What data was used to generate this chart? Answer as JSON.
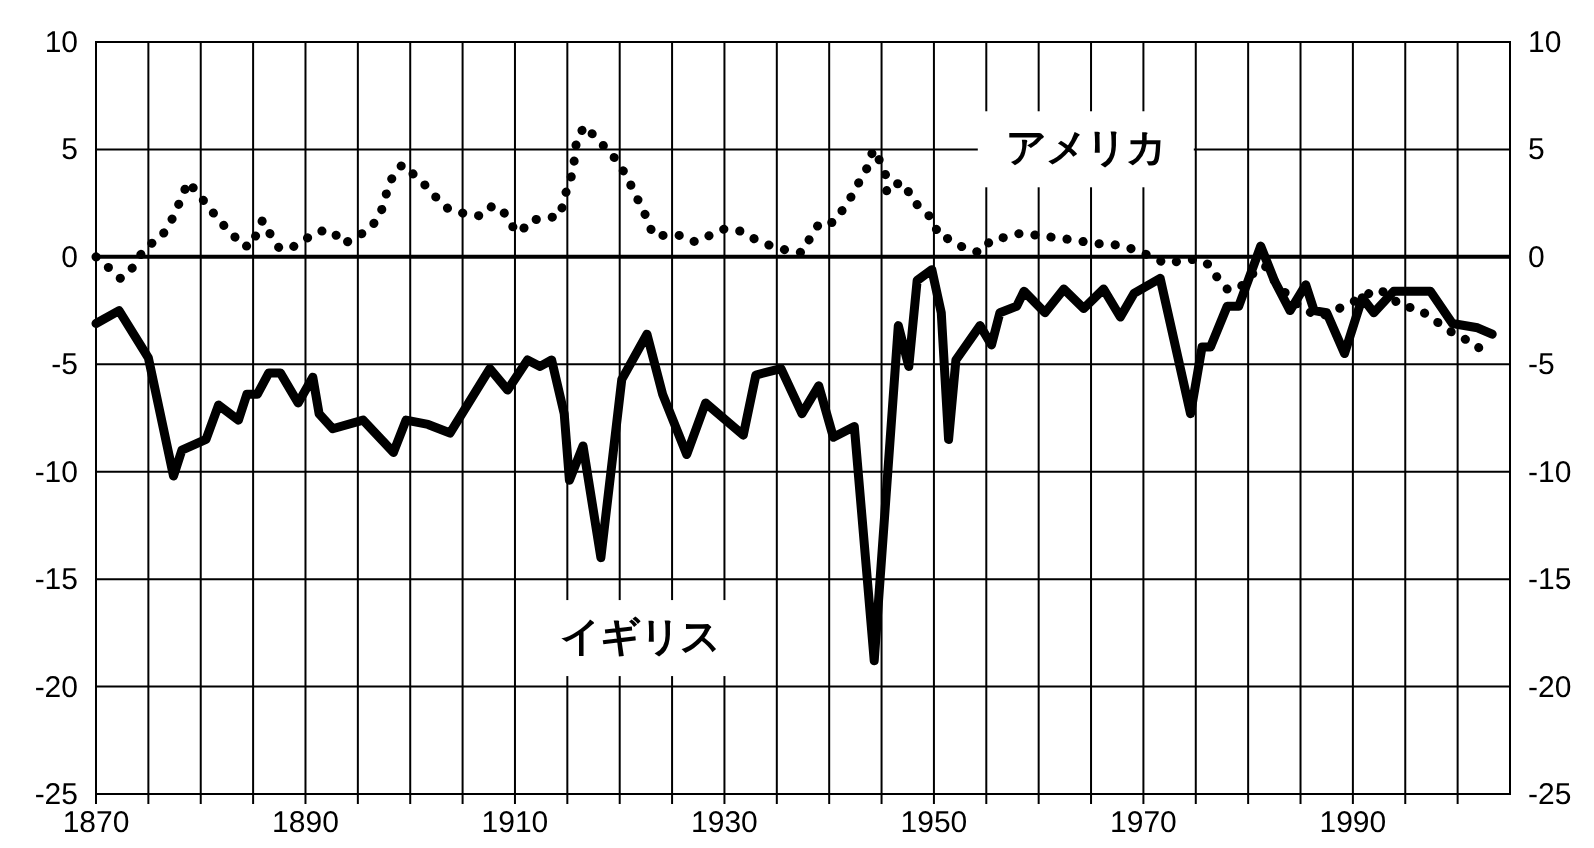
{
  "chart_data": {
    "type": "line",
    "xlim": [
      1870,
      2005
    ],
    "xticks": [
      1870,
      {
        "value": 1875,
        "label": null
      },
      {
        "value": 1880,
        "label": null
      },
      {
        "value": 1885,
        "label": null
      },
      1890,
      {
        "value": 1895,
        "label": null
      },
      {
        "value": 1900,
        "label": null
      },
      {
        "value": 1905,
        "label": null
      },
      1910,
      {
        "value": 1915,
        "label": null
      },
      {
        "value": 1920,
        "label": null
      },
      {
        "value": 1925,
        "label": null
      },
      1930,
      {
        "value": 1935,
        "label": null
      },
      {
        "value": 1940,
        "label": null
      },
      {
        "value": 1945,
        "label": null
      },
      1950,
      {
        "value": 1955,
        "label": null
      },
      {
        "value": 1960,
        "label": null
      },
      {
        "value": 1965,
        "label": null
      },
      1970,
      {
        "value": 1975,
        "label": null
      },
      {
        "value": 1980,
        "label": null
      },
      {
        "value": 1985,
        "label": null
      },
      1990,
      {
        "value": 1995,
        "label": null
      },
      {
        "value": 2000,
        "label": null
      }
    ],
    "ylim": [
      -25,
      10
    ],
    "yticks": [
      -25,
      -20,
      -15,
      -10,
      -5,
      0,
      5,
      10
    ],
    "y2lim": [
      -25,
      10
    ],
    "y2ticks": [
      -25,
      -20,
      -15,
      -10,
      -5,
      0,
      5,
      10
    ],
    "grid": true,
    "ref_lines": [
      {
        "axis": "y",
        "value": 0,
        "label": null
      }
    ],
    "series": [
      {
        "name": "アメリカ",
        "color": "#000000",
        "line_style": "dotted",
        "x": [
          1870,
          1871.2,
          1872.3,
          1873.1,
          1874,
          1874.8,
          1876,
          1876.9,
          1877.6,
          1878.2,
          1878.8,
          1879.8,
          1880.8,
          1881.9,
          1883,
          1883.9,
          1884.9,
          1885.4,
          1885.9,
          1886.7,
          1887.5,
          1888.6,
          1889.9,
          1891.3,
          1892.6,
          1893.6,
          1894.8,
          1896.1,
          1897.1,
          1898,
          1898.6,
          1899.3,
          1900.4,
          1901.5,
          1902.6,
          1903.7,
          1905.3,
          1906.8,
          1907.9,
          1908.9,
          1909.8,
          1910.5,
          1911.4,
          1912.9,
          1914.3,
          1914.7,
          1915.1,
          1915.6,
          1915.7,
          1916,
          1916.7,
          1917.6,
          1918.6,
          1919.7,
          1920.6,
          1921.9,
          1922.6,
          1923.2,
          1924.6,
          1925.8,
          1927.2,
          1928.6,
          1930,
          1931.5,
          1933,
          1934.5,
          1936,
          1937.4,
          1938.2,
          1939.1,
          1940.4,
          1941.3,
          1942.1,
          1943.1,
          1943.7,
          1944.2,
          1944.7,
          1945.4,
          1945.5,
          1946.3,
          1947.3,
          1947.8,
          1948.9,
          1950,
          1950.4,
          1951.6,
          1952.9,
          1954.4,
          1955.5,
          1956.7,
          1958.3,
          1959.9,
          1961.5,
          1963.1,
          1964.4,
          1965.9,
          1966.8,
          1968,
          1969.4,
          1970.8,
          1972.1,
          1973.5,
          1975.1,
          1976.4,
          1977.2,
          1978,
          1979.1,
          1980.4,
          1981.6,
          1982.5,
          1983.6,
          1984.9,
          1986,
          1986.8,
          1987.9,
          1989.5,
          1990.9,
          1992.2,
          1993.3,
          1994.6,
          1996.2,
          2000,
          2001.6,
          2002.7
        ],
        "values": [
          0.0,
          -0.5,
          -1.0,
          -0.8,
          -0.1,
          0.5,
          0.8,
          1.4,
          2.1,
          2.8,
          3.5,
          2.9,
          2.3,
          1.6,
          1.1,
          0.5,
          0.5,
          1.2,
          1.7,
          1.0,
          0.4,
          0.4,
          0.8,
          1.2,
          1.2,
          0.6,
          0.9,
          1.3,
          1.9,
          3.4,
          4.0,
          4.3,
          3.8,
          3.3,
          2.7,
          2.2,
          2.0,
          1.9,
          2.4,
          2.1,
          1.4,
          1.1,
          1.7,
          1.8,
          1.9,
          2.7,
          3.4,
          4.0,
          4.9,
          5.6,
          6.1,
          5.6,
          5.1,
          4.5,
          3.8,
          2.5,
          1.8,
          1.0,
          1.0,
          1.0,
          0.7,
          1.0,
          1.3,
          1.2,
          0.8,
          0.5,
          0.3,
          0.2,
          0.9,
          1.6,
          1.6,
          2.2,
          2.8,
          3.7,
          4.2,
          5.0,
          4.6,
          3.8,
          3.0,
          3.4,
          3.4,
          2.7,
          2.2,
          1.7,
          1.0,
          0.8,
          0.4,
          0.2,
          0.8,
          0.9,
          1.1,
          1.0,
          0.9,
          0.8,
          0.7,
          0.6,
          0.6,
          0.5,
          0.3,
          0.0,
          -0.3,
          -0.2,
          -0.1,
          -0.4,
          -1.1,
          -1.5,
          -1.5,
          -0.8,
          -0.4,
          -1.1,
          -1.7,
          -2.3,
          -2.6,
          -2.8,
          -2.6,
          -2.2,
          -1.9,
          -1.5,
          -1.7,
          -2.3,
          -2.4,
          -3.7,
          -4.0,
          -4.6
        ]
      },
      {
        "name": "イギリス",
        "color": "#000000",
        "line_style": "solid",
        "x": [
          1870,
          1872.2,
          1875,
          1877.4,
          1878.2,
          1880.5,
          1881.7,
          1883.6,
          1884.4,
          1885.4,
          1886.5,
          1887.6,
          1889.3,
          1890.7,
          1891.3,
          1892.6,
          1895.5,
          1898.4,
          1899.6,
          1901.7,
          1903.8,
          1907.6,
          1909.3,
          1911.2,
          1912.4,
          1913.5,
          1914.7,
          1915.2,
          1916.5,
          1918.2,
          1920.2,
          1922.6,
          1924.1,
          1926.4,
          1928.2,
          1931.8,
          1933,
          1935.4,
          1937.4,
          1939,
          1940.4,
          1942.4,
          1944.3,
          1946.6,
          1947.6,
          1948.4,
          1949.8,
          1950.7,
          1951.4,
          1952.1,
          1954.4,
          1955.5,
          1956.3,
          1957.9,
          1958.6,
          1960.6,
          1962.4,
          1964.3,
          1966.2,
          1967.8,
          1969.1,
          1971.6,
          1974.5,
          1975.6,
          1976.4,
          1978,
          1979.1,
          1981.2,
          1982.5,
          1984,
          1985.5,
          1986.3,
          1987.5,
          1989.2,
          1990.9,
          1992,
          1993.9,
          1997.4,
          1999.5,
          2001.9,
          2003.3
        ],
        "values": [
          -3.1,
          -2.5,
          -4.7,
          -10.2,
          -9.0,
          -8.5,
          -6.9,
          -7.6,
          -6.4,
          -6.4,
          -5.4,
          -5.4,
          -6.8,
          -5.6,
          -7.3,
          -8.0,
          -7.6,
          -9.1,
          -7.6,
          -7.8,
          -8.2,
          -5.2,
          -6.2,
          -4.8,
          -5.1,
          -4.8,
          -7.3,
          -10.4,
          -8.8,
          -14.0,
          -5.7,
          -3.6,
          -6.4,
          -9.2,
          -6.8,
          -8.3,
          -5.5,
          -5.2,
          -7.3,
          -6.0,
          -8.4,
          -7.9,
          -18.8,
          -3.2,
          -5.1,
          -1.1,
          -0.6,
          -2.6,
          -8.5,
          -4.8,
          -3.2,
          -4.1,
          -2.6,
          -2.3,
          -1.6,
          -2.6,
          -1.5,
          -2.4,
          -1.5,
          -2.8,
          -1.7,
          -1.0,
          -7.3,
          -4.2,
          -4.2,
          -2.3,
          -2.3,
          0.5,
          -1.1,
          -2.5,
          -1.3,
          -2.5,
          -2.6,
          -4.5,
          -1.9,
          -2.6,
          -1.6,
          -1.6,
          -3.1,
          -3.3,
          -3.6
        ]
      }
    ]
  }
}
